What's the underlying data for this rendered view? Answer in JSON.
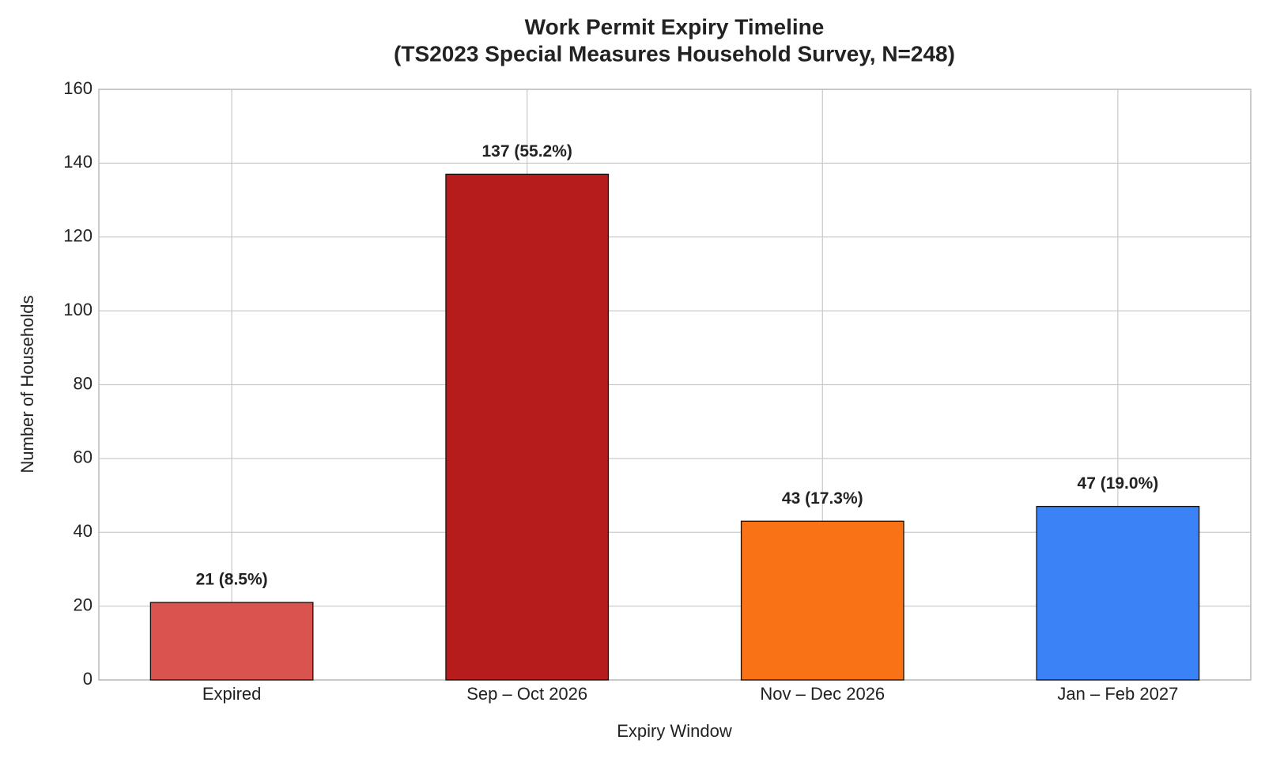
{
  "chart_data": {
    "type": "bar",
    "title": "Work Permit Expiry Timeline",
    "subtitle": "(TS2023 Special Measures Household Survey, N=248)",
    "x_label": "Expiry Window",
    "y_label": "Number of Households",
    "categories": [
      "Expired",
      "Sep – Oct 2026",
      "Nov – Dec 2026",
      "Jan – Feb 2027"
    ],
    "values": [
      21,
      137,
      43,
      47
    ],
    "value_labels": [
      "21 (8.5%)",
      "137 (55.2%)",
      "43 (17.3%)",
      "47 (19.0%)"
    ],
    "colors": [
      "#d9534f",
      "#b71c1c",
      "#f97316",
      "#3b82f6"
    ],
    "ylim": [
      0,
      160
    ],
    "yticks": [
      0,
      20,
      40,
      60,
      80,
      100,
      120,
      140,
      160
    ],
    "grid": true
  }
}
